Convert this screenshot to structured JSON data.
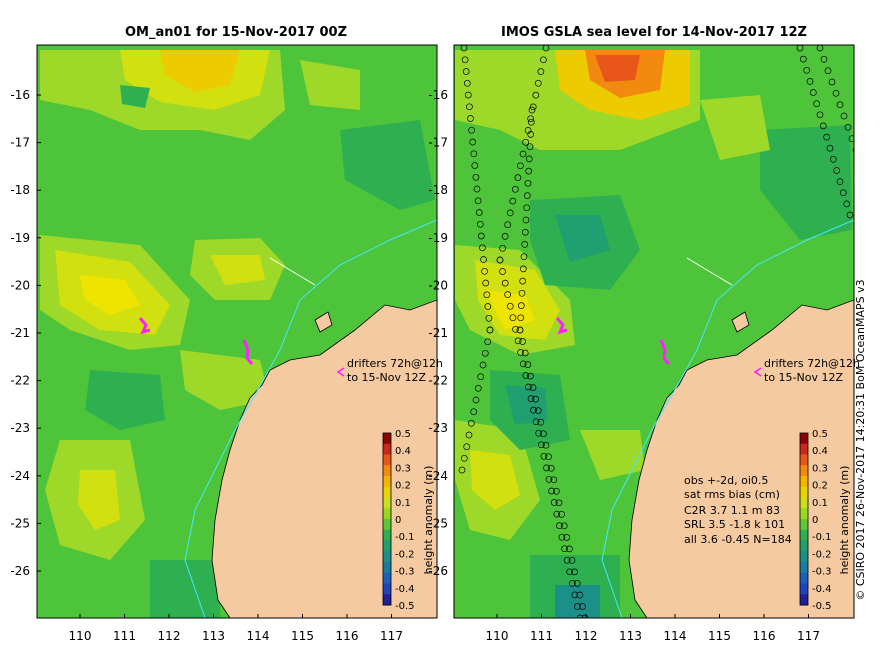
{
  "panels": {
    "left": {
      "title": "OM_an01 for 15-Nov-2017 00Z",
      "drifter_note_1": "drifters 72h@12h",
      "drifter_note_2": "to 15-Nov 12Z"
    },
    "right": {
      "title": "IMOS GSLA sea level  for 14-Nov-2017 12Z",
      "drifter_note_1": "drifters 72h@12h",
      "drifter_note_2": "to 15-Nov 12Z",
      "stats": {
        "line1": "obs +-2d, oi0.5",
        "line2": "sat rms bias (cm)",
        "line3": "C2R   3.7 1.1 m 83",
        "line4": "SRL    3.5 -1.8 k 101",
        "line5": "all    3.6 -0.45 N=184"
      }
    }
  },
  "axes": {
    "lat_labels": [
      "-16",
      "-17",
      "-18",
      "-19",
      "-20",
      "-21",
      "-22",
      "-23",
      "-24",
      "-25",
      "-26"
    ],
    "lon_labels": [
      "110",
      "111",
      "112",
      "113",
      "114",
      "115",
      "116",
      "117"
    ]
  },
  "colorbar": {
    "label": "height anomaly (m)",
    "ticks": [
      "0.5",
      "0.4",
      "0.3",
      "0.2",
      "0.1",
      "0",
      "-0.1",
      "-0.2",
      "-0.3",
      "-0.4",
      "-0.5"
    ],
    "colors": [
      "#8b0000",
      "#c8281e",
      "#e8561a",
      "#f28a10",
      "#f4b400",
      "#e8d200",
      "#c8e020",
      "#9ad820",
      "#5cc838",
      "#2eb050",
      "#20a070",
      "#1a9088",
      "#1a7aa0",
      "#1a60b8",
      "#1f44c0",
      "#20209a"
    ]
  },
  "credit": "© CSIRO 2017   26-Nov-2017 14:20:31 BoM OceanMAPS v3",
  "map_colors": {
    "land": "#f6caa0",
    "coast": "#000000",
    "isobath": "#44e8ff",
    "drifter": "#ff20ff"
  }
}
